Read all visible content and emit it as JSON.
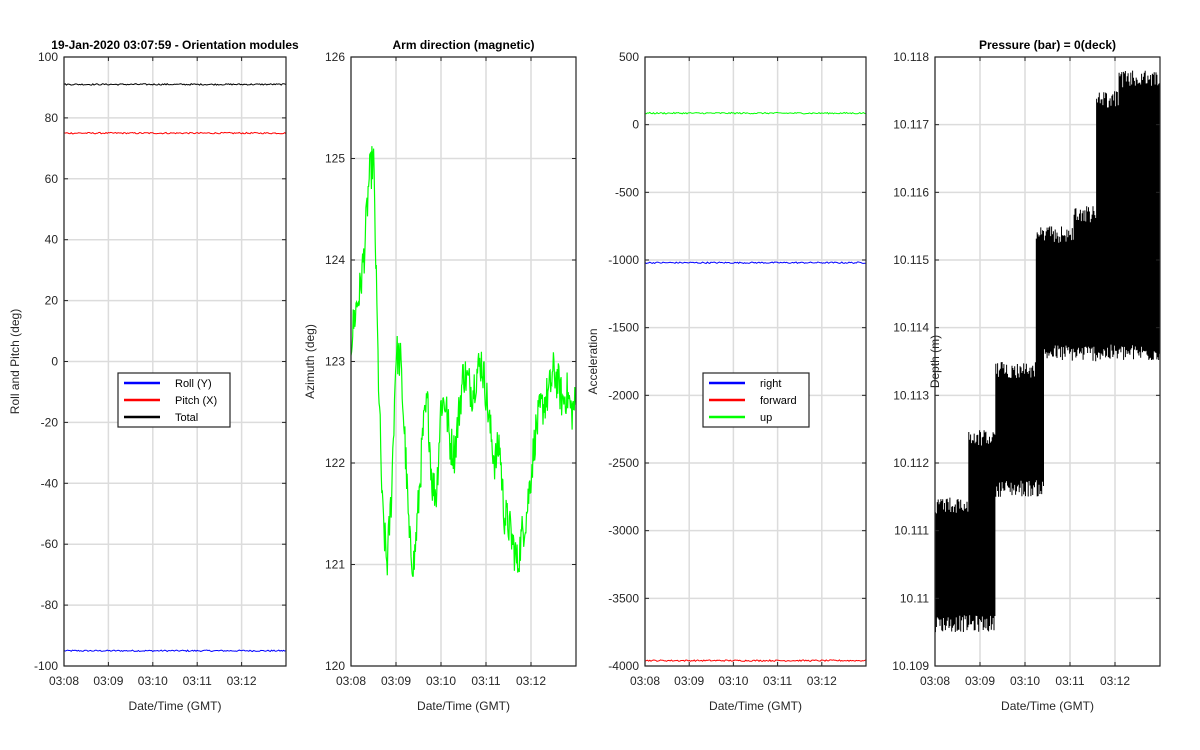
{
  "chart_data": [
    {
      "type": "line",
      "title": "19-Jan-2020 03:07:59 - Orientation modules",
      "xlabel": "Date/Time (GMT)",
      "ylabel": "Roll and Pitch (deg)",
      "xlim": [
        "03:08",
        "03:13"
      ],
      "xticks": [
        "03:08",
        "03:09",
        "03:10",
        "03:11",
        "03:12"
      ],
      "ylim": [
        -100,
        100
      ],
      "yticks": [
        "-100",
        "-80",
        "-60",
        "-40",
        "-20",
        "0",
        "20",
        "40",
        "60",
        "80",
        "100"
      ],
      "grid": true,
      "legend_position": "center",
      "series": [
        {
          "name": "Roll (Y)",
          "color": "#0000ff",
          "x": [
            "03:08",
            "03:09",
            "03:10",
            "03:11",
            "03:12",
            "03:13"
          ],
          "values": [
            -95,
            -95,
            -95,
            -95,
            -95,
            -95
          ]
        },
        {
          "name": "Pitch (X)",
          "color": "#ff0000",
          "x": [
            "03:08",
            "03:09",
            "03:10",
            "03:11",
            "03:12",
            "03:13"
          ],
          "values": [
            75,
            75,
            75,
            75,
            75,
            75
          ]
        },
        {
          "name": "Total",
          "color": "#000000",
          "x": [
            "03:08",
            "03:09",
            "03:10",
            "03:11",
            "03:12",
            "03:13"
          ],
          "values": [
            91,
            91,
            91,
            91,
            91,
            91
          ]
        }
      ]
    },
    {
      "type": "line",
      "title": "Arm direction (magnetic)",
      "xlabel": "Date/Time (GMT)",
      "ylabel": "Azimuth (deg)",
      "xlim": [
        "03:08",
        "03:13"
      ],
      "xticks": [
        "03:08",
        "03:09",
        "03:10",
        "03:11",
        "03:12"
      ],
      "ylim": [
        120,
        126
      ],
      "yticks": [
        "120",
        "121",
        "122",
        "123",
        "124",
        "125",
        "126"
      ],
      "grid": true,
      "series": [
        {
          "color": "#00ff00",
          "x": [
            "03:08:00",
            "03:08:06",
            "03:08:12",
            "03:08:18",
            "03:08:24",
            "03:08:30",
            "03:08:36",
            "03:08:42",
            "03:08:48",
            "03:08:54",
            "03:09:00",
            "03:09:06",
            "03:09:12",
            "03:09:18",
            "03:09:24",
            "03:09:30",
            "03:09:36",
            "03:09:42",
            "03:09:48",
            "03:09:54",
            "03:10:00",
            "03:10:06",
            "03:10:12",
            "03:10:18",
            "03:10:24",
            "03:10:30",
            "03:10:36",
            "03:10:42",
            "03:10:48",
            "03:10:54",
            "03:11:00",
            "03:11:06",
            "03:11:12",
            "03:11:18",
            "03:11:24",
            "03:11:30",
            "03:11:36",
            "03:11:42",
            "03:11:48",
            "03:11:54",
            "03:12:00",
            "03:12:06",
            "03:12:12",
            "03:12:18",
            "03:12:24",
            "03:12:30",
            "03:12:36",
            "03:12:42",
            "03:12:48",
            "03:12:54",
            "03:13:00"
          ],
          "values": [
            123.2,
            123.5,
            123.7,
            124.1,
            124.8,
            125.0,
            123.0,
            121.5,
            121.0,
            121.7,
            123.1,
            123.0,
            122.2,
            121.2,
            121.0,
            121.6,
            122.3,
            122.6,
            121.8,
            121.7,
            122.6,
            122.6,
            122.2,
            122.1,
            122.5,
            122.9,
            122.8,
            122.7,
            122.9,
            123.0,
            122.7,
            122.3,
            122.0,
            122.2,
            121.5,
            121.4,
            121.2,
            121.0,
            121.3,
            121.5,
            121.9,
            122.3,
            122.5,
            122.6,
            122.7,
            122.9,
            122.8,
            122.6,
            122.7,
            122.5,
            122.6
          ]
        }
      ]
    },
    {
      "type": "line",
      "title": "",
      "xlabel": "Date/Time (GMT)",
      "ylabel": "Acceleration",
      "xlim": [
        "03:08",
        "03:13"
      ],
      "xticks": [
        "03:08",
        "03:09",
        "03:10",
        "03:11",
        "03:12"
      ],
      "ylim": [
        -4000,
        500
      ],
      "yticks": [
        "-4000",
        "-3500",
        "-3000",
        "-2500",
        "-2000",
        "-1500",
        "-1000",
        "-500",
        "0",
        "500"
      ],
      "grid": true,
      "legend_position": "center",
      "series": [
        {
          "name": "right",
          "color": "#0000ff",
          "x": [
            "03:08",
            "03:09",
            "03:10",
            "03:11",
            "03:12",
            "03:13"
          ],
          "values": [
            -1020,
            -1020,
            -1020,
            -1020,
            -1020,
            -1020
          ]
        },
        {
          "name": "forward",
          "color": "#ff0000",
          "x": [
            "03:08",
            "03:09",
            "03:10",
            "03:11",
            "03:12",
            "03:13"
          ],
          "values": [
            -3960,
            -3960,
            -3960,
            -3960,
            -3960,
            -3960
          ]
        },
        {
          "name": "up",
          "color": "#00ff00",
          "x": [
            "03:08",
            "03:09",
            "03:10",
            "03:11",
            "03:12",
            "03:13"
          ],
          "values": [
            85,
            85,
            85,
            85,
            85,
            85
          ]
        }
      ]
    },
    {
      "type": "line",
      "title": "Pressure (bar) = 0(deck)",
      "xlabel": "Date/Time (GMT)",
      "ylabel": "Depth (m)",
      "xlim": [
        "03:08",
        "03:13"
      ],
      "xticks": [
        "03:08",
        "03:09",
        "03:10",
        "03:11",
        "03:12"
      ],
      "ylim": [
        10.109,
        10.118
      ],
      "yticks": [
        "10.109",
        "10.11",
        "10.111",
        "10.112",
        "10.113",
        "10.114",
        "10.115",
        "10.116",
        "10.117",
        "10.118"
      ],
      "grid": true,
      "series": [
        {
          "color": "#000000",
          "x": [
            "03:08:00",
            "03:08:40",
            "03:09:10",
            "03:09:20",
            "03:10:10",
            "03:10:20",
            "03:11:00",
            "03:11:30",
            "03:11:50",
            "03:12:30",
            "03:13:00"
          ],
          "values": [
            10.1105,
            10.1115,
            10.1125,
            10.1135,
            10.1135,
            10.1145,
            10.1145,
            10.1148,
            10.1155,
            10.1155,
            10.1155
          ],
          "band": [
            [
              "03:08:00",
              10.1095,
              10.1115
            ],
            [
              "03:08:45",
              10.1095,
              10.1125
            ],
            [
              "03:09:20",
              10.1115,
              10.1135
            ],
            [
              "03:10:15",
              10.1115,
              10.1155
            ],
            [
              "03:10:25",
              10.1135,
              10.1155
            ],
            [
              "03:11:05",
              10.1135,
              10.1158
            ],
            [
              "03:11:35",
              10.1135,
              10.1175
            ],
            [
              "03:12:05",
              10.1135,
              10.1178
            ],
            [
              "03:12:35",
              10.1135,
              10.1178
            ],
            [
              "03:13:00",
              10.1135,
              10.1165
            ]
          ]
        }
      ]
    }
  ]
}
